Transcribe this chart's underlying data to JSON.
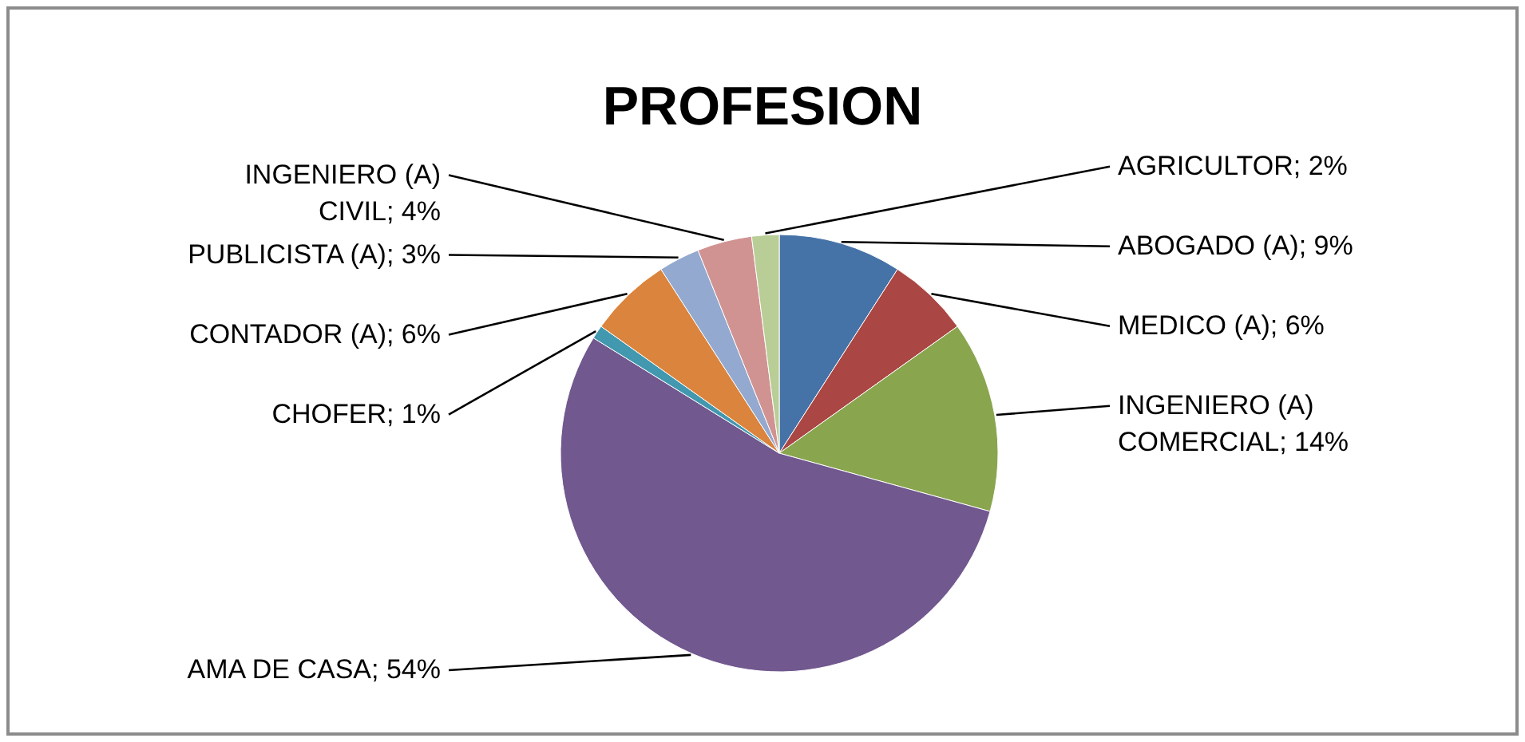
{
  "chart_data": {
    "type": "pie",
    "title": "PROFESION",
    "categories": [
      "ABOGADO (A)",
      "MEDICO (A)",
      "INGENIERO (A) COMERCIAL",
      "AMA DE CASA",
      "CHOFER",
      "CONTADOR (A)",
      "PUBLICISTA (A)",
      "INGENIERO (A) CIVIL",
      "AGRICULTOR"
    ],
    "values": [
      9,
      6,
      14,
      54,
      1,
      6,
      3,
      4,
      2
    ],
    "value_labels": [
      "9%",
      "6%",
      "14%",
      "54%",
      "1%",
      "6%",
      "3%",
      "4%",
      "2%"
    ],
    "colors": [
      "#4572a7",
      "#aa4643",
      "#89a54e",
      "#71588f",
      "#4198af",
      "#db843d",
      "#93a9cf",
      "#d19392",
      "#b9cd96"
    ]
  }
}
